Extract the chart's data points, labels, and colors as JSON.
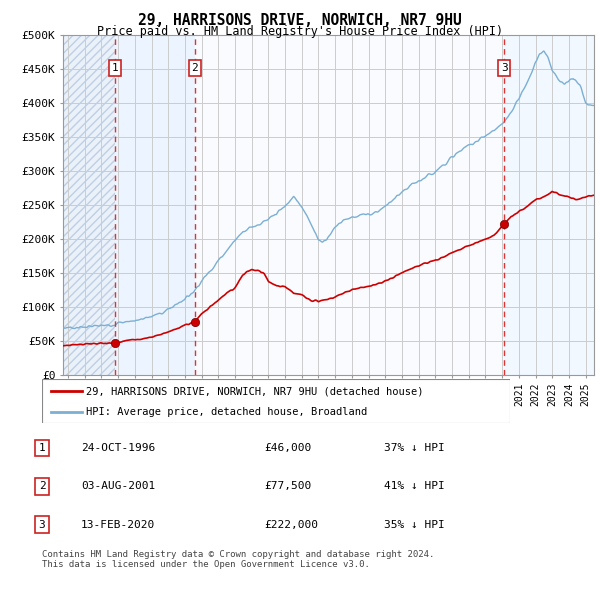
{
  "title": "29, HARRISONS DRIVE, NORWICH, NR7 9HU",
  "subtitle": "Price paid vs. HM Land Registry's House Price Index (HPI)",
  "ylabel_ticks": [
    "£0",
    "£50K",
    "£100K",
    "£150K",
    "£200K",
    "£250K",
    "£300K",
    "£350K",
    "£400K",
    "£450K",
    "£500K"
  ],
  "ytick_values": [
    0,
    50000,
    100000,
    150000,
    200000,
    250000,
    300000,
    350000,
    400000,
    450000,
    500000
  ],
  "ylim": [
    0,
    500000
  ],
  "xlim_start": 1993.7,
  "xlim_end": 2025.5,
  "hpi_color": "#7bafd4",
  "price_color": "#cc0000",
  "dashed_line_color": "#dd2222",
  "sale_marker_color": "#990000",
  "grid_color": "#cccccc",
  "legend_label_price": "29, HARRISONS DRIVE, NORWICH, NR7 9HU (detached house)",
  "legend_label_hpi": "HPI: Average price, detached house, Broadland",
  "sales": [
    {
      "num": 1,
      "date": "24-OCT-1996",
      "year": 1996.81,
      "price": 46000,
      "pct": "37%"
    },
    {
      "num": 2,
      "date": "03-AUG-2001",
      "year": 2001.59,
      "price": 77500,
      "pct": "41%"
    },
    {
      "num": 3,
      "date": "13-FEB-2020",
      "year": 2020.12,
      "price": 222000,
      "pct": "35%"
    }
  ],
  "footer": "Contains HM Land Registry data © Crown copyright and database right 2024.\nThis data is licensed under the Open Government Licence v3.0.",
  "hpi_points_x": [
    1993.7,
    1994,
    1994.5,
    1995,
    1995.5,
    1996,
    1996.5,
    1997,
    1997.5,
    1998,
    1998.5,
    1999,
    1999.5,
    2000,
    2000.5,
    2001,
    2001.5,
    2002,
    2002.5,
    2003,
    2003.5,
    2004,
    2004.5,
    2005,
    2005.5,
    2006,
    2006.5,
    2007,
    2007.25,
    2007.5,
    2007.75,
    2008,
    2008.25,
    2008.5,
    2008.75,
    2009,
    2009.25,
    2009.5,
    2009.75,
    2010,
    2010.5,
    2011,
    2011.5,
    2012,
    2012.5,
    2013,
    2013.5,
    2014,
    2014.5,
    2015,
    2015.5,
    2016,
    2016.5,
    2017,
    2017.5,
    2018,
    2018.5,
    2019,
    2019.5,
    2020,
    2020.5,
    2021,
    2021.5,
    2022,
    2022.25,
    2022.5,
    2022.75,
    2023,
    2023.25,
    2023.5,
    2023.75,
    2024,
    2024.25,
    2024.5,
    2024.75,
    2025,
    2025.5
  ],
  "hpi_points_y": [
    68000,
    70000,
    69000,
    70500,
    71000,
    72000,
    73000,
    76000,
    78000,
    80000,
    82000,
    86000,
    90000,
    96000,
    104000,
    112000,
    122000,
    138000,
    153000,
    168000,
    183000,
    198000,
    212000,
    218000,
    222000,
    228000,
    238000,
    248000,
    255000,
    262000,
    256000,
    248000,
    238000,
    225000,
    210000,
    200000,
    196000,
    200000,
    208000,
    218000,
    228000,
    232000,
    235000,
    236000,
    240000,
    248000,
    258000,
    268000,
    278000,
    285000,
    292000,
    300000,
    310000,
    320000,
    330000,
    338000,
    345000,
    352000,
    360000,
    368000,
    385000,
    408000,
    430000,
    460000,
    472000,
    478000,
    468000,
    450000,
    440000,
    430000,
    428000,
    432000,
    438000,
    430000,
    420000,
    400000,
    395000
  ],
  "red_points_x": [
    1993.7,
    1994,
    1994.5,
    1995,
    1995.5,
    1996,
    1996.5,
    1996.81,
    1997,
    1997.5,
    1998,
    1998.5,
    1999,
    1999.5,
    2000,
    2000.5,
    2001,
    2001.59,
    2002,
    2002.5,
    2003,
    2003.5,
    2004,
    2004.25,
    2004.5,
    2004.75,
    2005,
    2005.25,
    2005.5,
    2005.75,
    2006,
    2006.5,
    2007,
    2007.5,
    2008,
    2008.5,
    2009,
    2009.5,
    2010,
    2010.5,
    2011,
    2011.5,
    2012,
    2012.5,
    2013,
    2013.5,
    2014,
    2014.5,
    2015,
    2015.5,
    2016,
    2016.5,
    2017,
    2017.5,
    2018,
    2018.5,
    2019,
    2019.5,
    2020.12,
    2020.5,
    2021,
    2021.5,
    2022,
    2022.5,
    2023,
    2023.25,
    2023.5,
    2024,
    2024.5,
    2025,
    2025.5
  ],
  "red_points_y": [
    43000,
    44000,
    44500,
    45000,
    45500,
    46000,
    46500,
    46000,
    48000,
    50000,
    52000,
    53000,
    56000,
    59000,
    63000,
    68000,
    73000,
    77500,
    90000,
    100000,
    110000,
    120000,
    128000,
    138000,
    148000,
    153000,
    155000,
    154000,
    153000,
    148000,
    138000,
    130000,
    130000,
    120000,
    118000,
    110000,
    108000,
    110000,
    115000,
    120000,
    125000,
    128000,
    130000,
    133000,
    138000,
    143000,
    150000,
    156000,
    160000,
    165000,
    168000,
    173000,
    180000,
    185000,
    190000,
    195000,
    200000,
    205000,
    222000,
    232000,
    240000,
    248000,
    258000,
    262000,
    270000,
    268000,
    265000,
    262000,
    258000,
    262000,
    265000
  ],
  "table_rows": [
    {
      "num": "1",
      "date": "24-OCT-1996",
      "price": "£46,000",
      "pct": "37% ↓ HPI"
    },
    {
      "num": "2",
      "date": "03-AUG-2001",
      "price": "£77,500",
      "pct": "41% ↓ HPI"
    },
    {
      "num": "3",
      "date": "13-FEB-2020",
      "price": "£222,000",
      "pct": "35% ↓ HPI"
    }
  ]
}
